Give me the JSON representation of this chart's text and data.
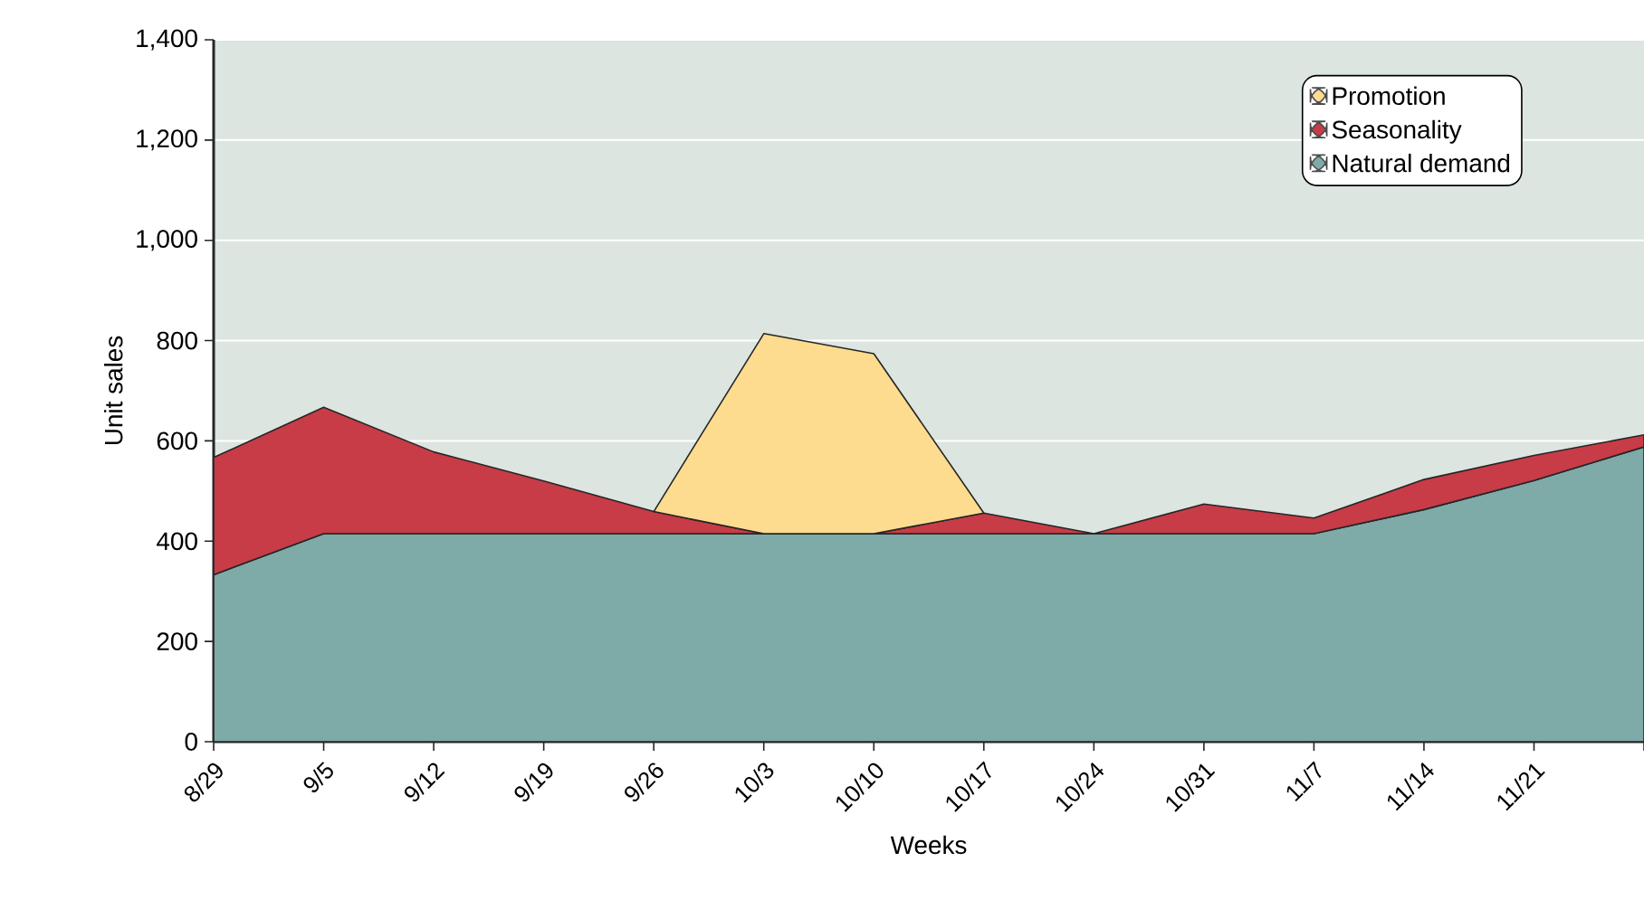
{
  "chart_data": {
    "type": "area",
    "stacked": true,
    "xlabel": "Weeks",
    "ylabel": "Unit sales",
    "categories": [
      "8/29",
      "9/5",
      "9/12",
      "9/19",
      "9/26",
      "10/3",
      "10/10",
      "10/17",
      "10/24",
      "10/31",
      "11/7",
      "11/14",
      "11/21",
      null
    ],
    "series": [
      {
        "name": "Natural demand",
        "color": "#7eaaa8",
        "values": [
          333,
          415,
          415,
          415,
          415,
          415,
          415,
          415,
          415,
          415,
          415,
          463,
          521,
          588
        ]
      },
      {
        "name": "Seasonality",
        "color": "#c73c47",
        "values": [
          234,
          252,
          163,
          105,
          44,
          0,
          0,
          41,
          0,
          59,
          31,
          60,
          50,
          24
        ]
      },
      {
        "name": "Promotion",
        "color": "#fddc8f",
        "values": [
          null,
          null,
          null,
          null,
          0,
          399,
          359,
          0,
          null,
          null,
          null,
          null,
          null,
          null
        ]
      }
    ],
    "ylim": [
      0,
      1400
    ],
    "yticks": [
      0,
      200,
      400,
      600,
      800,
      {
        "value": 1000,
        "label": "1,000"
      },
      {
        "value": 1200,
        "label": "1,200"
      },
      {
        "value": 1400,
        "label": "1,400"
      }
    ],
    "grid": "y",
    "legend": "top right"
  }
}
